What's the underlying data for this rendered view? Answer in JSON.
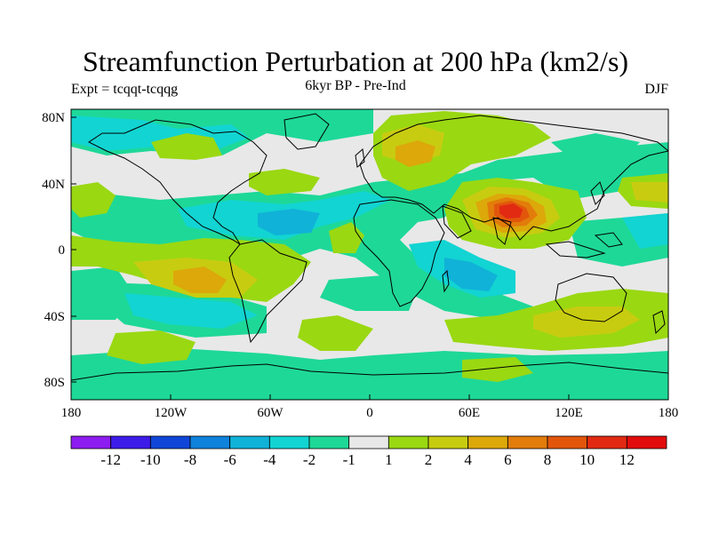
{
  "title": "Streamfunction Perturbation at 200 hPa (km2/s)",
  "left_string": "Expt = tcqqt-tcqqg",
  "center_string": "6kyr BP - Pre-Ind",
  "right_string": "DJF",
  "map": {
    "lon_ticks": [
      "180",
      "120W",
      "60W",
      "0",
      "60E",
      "120E",
      "180"
    ],
    "lat_ticks": [
      "80N",
      "40N",
      "0",
      "40S",
      "80S"
    ]
  },
  "colorbar": {
    "labels": [
      "-12",
      "-10",
      "-8",
      "-6",
      "-4",
      "-2",
      "-1",
      "1",
      "2",
      "4",
      "6",
      "8",
      "10",
      "12"
    ],
    "colors": [
      "#8d1cf0",
      "#3d1ce8",
      "#1046d8",
      "#0f82dc",
      "#10b2d8",
      "#12d4d2",
      "#1ed898",
      "#e8e8e8",
      "#9ad812",
      "#c8cc10",
      "#dca80a",
      "#e27c0a",
      "#e2560c",
      "#e22a12",
      "#e20c0c"
    ]
  },
  "colors": {
    "land_outline": "#000000",
    "map_background": "#e8e8e8",
    "colorbar_border": "#000000"
  }
}
